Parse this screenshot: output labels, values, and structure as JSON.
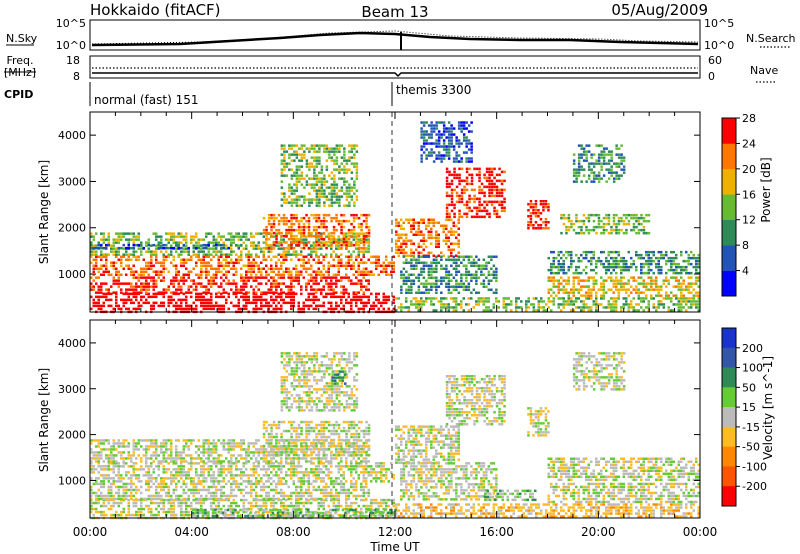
{
  "header": {
    "station": "Hokkaido (fitACF)",
    "beam": "Beam 13",
    "date": "05/Aug/2009"
  },
  "side_labels": {
    "nsky": "N.Sky",
    "freq_l1": "Freq.",
    "freq_l2": "[MHz]",
    "cpid": "CPID",
    "nsearch": "N.Search",
    "nave": "Nave"
  },
  "small_panels": {
    "nsky_ticks": [
      "10^5",
      "10^0"
    ],
    "nsearch_ticks": [
      "10^5",
      "10^0"
    ],
    "freq_ticks": [
      "18",
      "8"
    ],
    "nave_ticks": [
      "60",
      "0"
    ]
  },
  "cpid": {
    "segments": [
      {
        "label": "normal (fast) 151",
        "start_hour": 0
      },
      {
        "label": "themis 3300",
        "start_hour": 12
      }
    ]
  },
  "time_axis": {
    "label": "Time UT",
    "ticks": [
      "00:00",
      "04:00",
      "08:00",
      "12:00",
      "16:00",
      "20:00",
      "00:00"
    ]
  },
  "chart_data": [
    {
      "type": "heatmap",
      "name": "power",
      "ylabel": "Slant Range [km]",
      "xlim": [
        0,
        24
      ],
      "ylim": [
        180,
        4500
      ],
      "yticks": [
        "1000",
        "2000",
        "3000",
        "4000"
      ],
      "colorbar": {
        "label": "Power [dB]",
        "ticks": [
          "4",
          "8",
          "12",
          "16",
          "20",
          "24",
          "28"
        ],
        "colors": [
          "#0000ff",
          "#2255b3",
          "#2e8b57",
          "#66bb33",
          "#f0b000",
          "#ff7700",
          "#ff0000"
        ]
      },
      "regions": [
        {
          "t": [
            0,
            12
          ],
          "r": [
            200,
            600
          ],
          "level": 7
        },
        {
          "t": [
            0,
            11
          ],
          "r": [
            600,
            950
          ],
          "level": 6
        },
        {
          "t": [
            0,
            12
          ],
          "r": [
            950,
            1400
          ],
          "level": 5
        },
        {
          "t": [
            0,
            11
          ],
          "r": [
            1400,
            1900
          ],
          "level": 3
        },
        {
          "t": [
            0,
            6
          ],
          "r": [
            1550,
            1650
          ],
          "level": 1
        },
        {
          "t": [
            6.8,
            11
          ],
          "r": [
            1550,
            2300
          ],
          "level": 5
        },
        {
          "t": [
            7.5,
            10.5
          ],
          "r": [
            2500,
            3800
          ],
          "level": 3
        },
        {
          "t": [
            12,
            14.5
          ],
          "r": [
            1400,
            2200
          ],
          "level": 5
        },
        {
          "t": [
            14,
            16.3
          ],
          "r": [
            2200,
            3300
          ],
          "level": 6
        },
        {
          "t": [
            12.2,
            16
          ],
          "r": [
            600,
            1400
          ],
          "level": 2
        },
        {
          "t": [
            12,
            24
          ],
          "r": [
            200,
            500
          ],
          "level": 3
        },
        {
          "t": [
            17.2,
            18
          ],
          "r": [
            2000,
            2600
          ],
          "level": 6
        },
        {
          "t": [
            18,
            24
          ],
          "r": [
            1000,
            1500
          ],
          "level": 2
        },
        {
          "t": [
            18,
            24
          ],
          "r": [
            550,
            950
          ],
          "level": 4
        },
        {
          "t": [
            18.5,
            22
          ],
          "r": [
            1900,
            2300
          ],
          "level": 3
        },
        {
          "t": [
            13,
            15
          ],
          "r": [
            3400,
            4300
          ],
          "level": 1
        },
        {
          "t": [
            19,
            21
          ],
          "r": [
            3000,
            3800
          ],
          "level": 2
        }
      ]
    },
    {
      "type": "heatmap",
      "name": "velocity",
      "ylabel": "Slant Range [km]",
      "xlim": [
        0,
        24
      ],
      "ylim": [
        180,
        4500
      ],
      "yticks": [
        "1000",
        "2000",
        "3000",
        "4000"
      ],
      "colorbar": {
        "label": "Velocity [m s^-1]",
        "ticks": [
          "200",
          "100",
          "50",
          "15",
          "-15",
          "-50",
          "-100",
          "-200"
        ],
        "colors": [
          "#1a33cc",
          "#3355aa",
          "#2e8b57",
          "#66cc33",
          "#bbbbbb",
          "#ffbb22",
          "#ff8800",
          "#ff5500",
          "#ff0000"
        ]
      },
      "regions": [
        {
          "t": [
            0,
            12
          ],
          "r": [
            200,
            600
          ],
          "level": 4
        },
        {
          "t": [
            0,
            11
          ],
          "r": [
            600,
            950
          ],
          "level": 4
        },
        {
          "t": [
            0,
            12
          ],
          "r": [
            950,
            1400
          ],
          "level": 4
        },
        {
          "t": [
            0,
            11
          ],
          "r": [
            1400,
            1900
          ],
          "level": 4
        },
        {
          "t": [
            6.8,
            11
          ],
          "r": [
            1550,
            2300
          ],
          "level": 4
        },
        {
          "t": [
            7.5,
            10.5
          ],
          "r": [
            2500,
            3800
          ],
          "level": 4
        },
        {
          "t": [
            12,
            14.5
          ],
          "r": [
            1400,
            2200
          ],
          "level": 4
        },
        {
          "t": [
            14,
            16.3
          ],
          "r": [
            2200,
            3300
          ],
          "level": 4
        },
        {
          "t": [
            12.2,
            16
          ],
          "r": [
            600,
            1400
          ],
          "level": 4
        },
        {
          "t": [
            12,
            24
          ],
          "r": [
            200,
            500
          ],
          "level": 5
        },
        {
          "t": [
            4,
            12
          ],
          "r": [
            200,
            380
          ],
          "level": 3
        },
        {
          "t": [
            15.5,
            17.5
          ],
          "r": [
            550,
            800
          ],
          "level": 3
        },
        {
          "t": [
            17.2,
            18
          ],
          "r": [
            2000,
            2600
          ],
          "level": 4
        },
        {
          "t": [
            18,
            24
          ],
          "r": [
            1000,
            1500
          ],
          "level": 4
        },
        {
          "t": [
            18,
            24
          ],
          "r": [
            550,
            950
          ],
          "level": 4
        },
        {
          "t": [
            9.5,
            10
          ],
          "r": [
            3100,
            3400
          ],
          "level": 2
        },
        {
          "t": [
            19,
            21
          ],
          "r": [
            3000,
            3800
          ],
          "level": 4
        }
      ]
    }
  ]
}
